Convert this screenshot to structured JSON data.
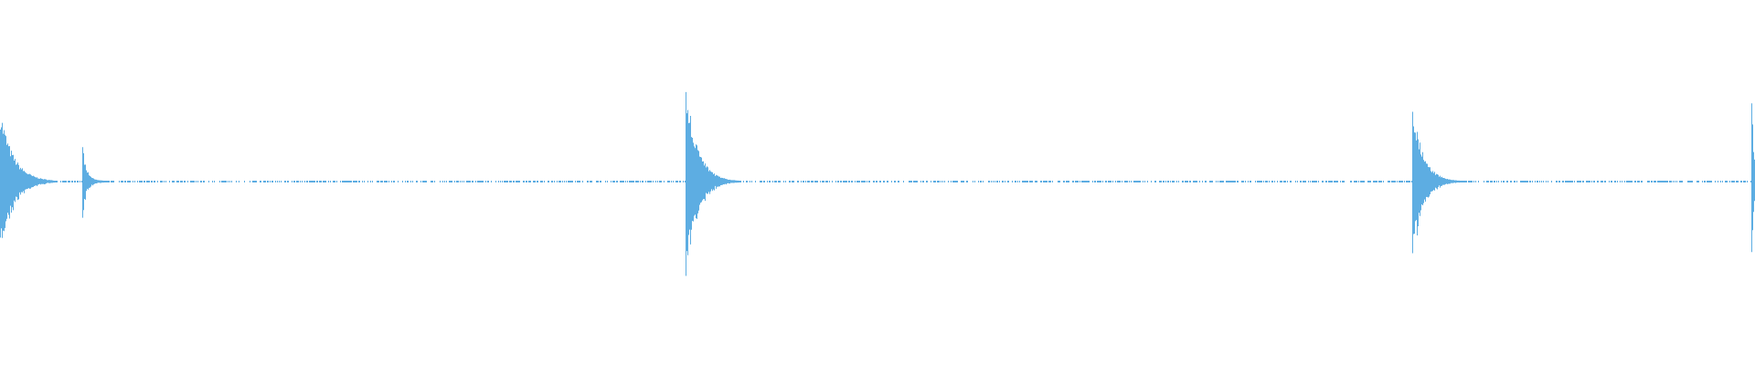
{
  "chart_data": {
    "type": "waveform",
    "title": "",
    "color": "#5dade2",
    "background": "#ffffff",
    "axes_visible": false,
    "grid": false
  }
}
